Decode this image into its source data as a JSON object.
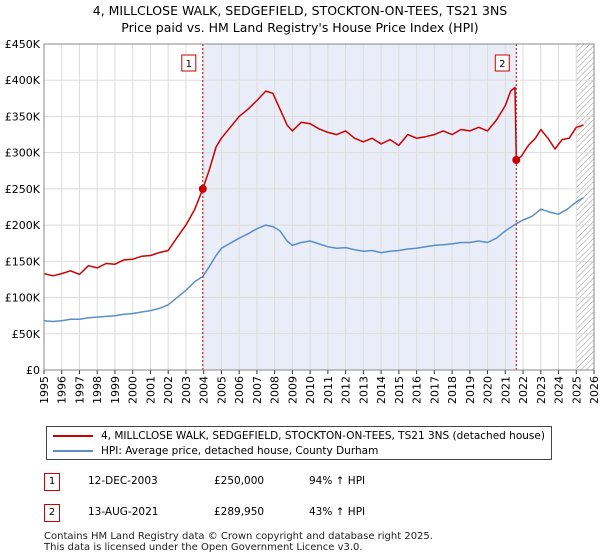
{
  "title": {
    "line1": "4, MILLCLOSE WALK, SEDGEFIELD, STOCKTON-ON-TEES, TS21 3NS",
    "line2": "Price paid vs. HM Land Registry's House Price Index (HPI)"
  },
  "colors": {
    "property": "#cc0000",
    "hpi": "#5b8ec9",
    "grid": "#dddddd",
    "plot_bg": "#ffffff",
    "highlight": "#e8edf7",
    "marker_line": "#cc0000"
  },
  "chart_data": {
    "type": "line",
    "xlim": [
      1995,
      2026
    ],
    "ylim": [
      0,
      450000
    ],
    "x_ticks": [
      "1995",
      "1996",
      "1997",
      "1998",
      "1999",
      "2000",
      "2001",
      "2002",
      "2003",
      "2004",
      "2005",
      "2006",
      "2007",
      "2008",
      "2009",
      "2010",
      "2011",
      "2012",
      "2013",
      "2014",
      "2015",
      "2016",
      "2017",
      "2018",
      "2019",
      "2020",
      "2021",
      "2022",
      "2023",
      "2024",
      "2025",
      "2026"
    ],
    "y_ticks": [
      {
        "value": 0,
        "label": "£0"
      },
      {
        "value": 50000,
        "label": "£50K"
      },
      {
        "value": 100000,
        "label": "£100K"
      },
      {
        "value": 150000,
        "label": "£150K"
      },
      {
        "value": 200000,
        "label": "£200K"
      },
      {
        "value": 250000,
        "label": "£250K"
      },
      {
        "value": 300000,
        "label": "£300K"
      },
      {
        "value": 350000,
        "label": "£350K"
      },
      {
        "value": 400000,
        "label": "£400K"
      },
      {
        "value": 450000,
        "label": "£450K"
      }
    ],
    "highlight_range": [
      2003.95,
      2021.62
    ],
    "future_hatch_from": 2025.0,
    "series": [
      {
        "name": "4, MILLCLOSE WALK, SEDGEFIELD, STOCKTON-ON-TEES, TS21 3NS (detached house)",
        "color": "#cc0000",
        "points": [
          [
            1995.0,
            133000
          ],
          [
            1995.5,
            130000
          ],
          [
            1996.0,
            133000
          ],
          [
            1996.5,
            137000
          ],
          [
            1997.0,
            132000
          ],
          [
            1997.5,
            144000
          ],
          [
            1998.0,
            141000
          ],
          [
            1998.5,
            147000
          ],
          [
            1999.0,
            146000
          ],
          [
            1999.5,
            152000
          ],
          [
            2000.0,
            153000
          ],
          [
            2000.5,
            157000
          ],
          [
            2001.0,
            158000
          ],
          [
            2001.5,
            162000
          ],
          [
            2002.0,
            165000
          ],
          [
            2002.5,
            183000
          ],
          [
            2003.0,
            200000
          ],
          [
            2003.5,
            222000
          ],
          [
            2003.95,
            250000
          ],
          [
            2004.3,
            275000
          ],
          [
            2004.7,
            308000
          ],
          [
            2005.0,
            320000
          ],
          [
            2005.5,
            335000
          ],
          [
            2006.0,
            350000
          ],
          [
            2006.5,
            360000
          ],
          [
            2007.0,
            372000
          ],
          [
            2007.5,
            385000
          ],
          [
            2007.9,
            382000
          ],
          [
            2008.3,
            360000
          ],
          [
            2008.7,
            338000
          ],
          [
            2009.0,
            330000
          ],
          [
            2009.5,
            342000
          ],
          [
            2010.0,
            340000
          ],
          [
            2010.5,
            333000
          ],
          [
            2011.0,
            328000
          ],
          [
            2011.5,
            325000
          ],
          [
            2012.0,
            330000
          ],
          [
            2012.5,
            320000
          ],
          [
            2013.0,
            315000
          ],
          [
            2013.5,
            320000
          ],
          [
            2014.0,
            312000
          ],
          [
            2014.5,
            318000
          ],
          [
            2015.0,
            310000
          ],
          [
            2015.5,
            325000
          ],
          [
            2016.0,
            320000
          ],
          [
            2016.5,
            322000
          ],
          [
            2017.0,
            325000
          ],
          [
            2017.5,
            330000
          ],
          [
            2018.0,
            325000
          ],
          [
            2018.5,
            332000
          ],
          [
            2019.0,
            330000
          ],
          [
            2019.5,
            335000
          ],
          [
            2020.0,
            330000
          ],
          [
            2020.5,
            345000
          ],
          [
            2021.0,
            365000
          ],
          [
            2021.3,
            385000
          ],
          [
            2021.55,
            390000
          ],
          [
            2021.62,
            289950
          ],
          [
            2021.9,
            295000
          ],
          [
            2022.3,
            310000
          ],
          [
            2022.7,
            320000
          ],
          [
            2023.0,
            332000
          ],
          [
            2023.4,
            320000
          ],
          [
            2023.8,
            305000
          ],
          [
            2024.2,
            318000
          ],
          [
            2024.6,
            320000
          ],
          [
            2025.0,
            335000
          ],
          [
            2025.4,
            338000
          ]
        ]
      },
      {
        "name": "HPI: Average price, detached house, County Durham",
        "color": "#5b8ec9",
        "points": [
          [
            1995.0,
            68000
          ],
          [
            1995.5,
            67000
          ],
          [
            1996.0,
            68000
          ],
          [
            1996.5,
            70000
          ],
          [
            1997.0,
            70000
          ],
          [
            1997.5,
            72000
          ],
          [
            1998.0,
            73000
          ],
          [
            1998.5,
            74000
          ],
          [
            1999.0,
            75000
          ],
          [
            1999.5,
            77000
          ],
          [
            2000.0,
            78000
          ],
          [
            2000.5,
            80000
          ],
          [
            2001.0,
            82000
          ],
          [
            2001.5,
            85000
          ],
          [
            2002.0,
            90000
          ],
          [
            2002.5,
            100000
          ],
          [
            2003.0,
            110000
          ],
          [
            2003.5,
            122000
          ],
          [
            2003.95,
            129000
          ],
          [
            2004.3,
            142000
          ],
          [
            2004.7,
            158000
          ],
          [
            2005.0,
            168000
          ],
          [
            2005.5,
            175000
          ],
          [
            2006.0,
            182000
          ],
          [
            2006.5,
            188000
          ],
          [
            2007.0,
            195000
          ],
          [
            2007.5,
            200000
          ],
          [
            2007.9,
            198000
          ],
          [
            2008.3,
            192000
          ],
          [
            2008.7,
            178000
          ],
          [
            2009.0,
            172000
          ],
          [
            2009.5,
            176000
          ],
          [
            2010.0,
            178000
          ],
          [
            2010.5,
            174000
          ],
          [
            2011.0,
            170000
          ],
          [
            2011.5,
            168000
          ],
          [
            2012.0,
            169000
          ],
          [
            2012.5,
            166000
          ],
          [
            2013.0,
            164000
          ],
          [
            2013.5,
            165000
          ],
          [
            2014.0,
            162000
          ],
          [
            2014.5,
            164000
          ],
          [
            2015.0,
            165000
          ],
          [
            2015.5,
            167000
          ],
          [
            2016.0,
            168000
          ],
          [
            2016.5,
            170000
          ],
          [
            2017.0,
            172000
          ],
          [
            2017.5,
            173000
          ],
          [
            2018.0,
            174000
          ],
          [
            2018.5,
            176000
          ],
          [
            2019.0,
            176000
          ],
          [
            2019.5,
            178000
          ],
          [
            2020.0,
            176000
          ],
          [
            2020.5,
            182000
          ],
          [
            2021.0,
            192000
          ],
          [
            2021.62,
            202000
          ],
          [
            2022.0,
            207000
          ],
          [
            2022.5,
            212000
          ],
          [
            2023.0,
            222000
          ],
          [
            2023.5,
            218000
          ],
          [
            2024.0,
            215000
          ],
          [
            2024.5,
            222000
          ],
          [
            2025.0,
            232000
          ],
          [
            2025.4,
            238000
          ]
        ]
      }
    ],
    "sales": [
      {
        "id": "1",
        "x": 2003.95,
        "y": 250000
      },
      {
        "id": "2",
        "x": 2021.62,
        "y": 289950
      }
    ]
  },
  "legend": {
    "property_label": "4, MILLCLOSE WALK, SEDGEFIELD, STOCKTON-ON-TEES, TS21 3NS (detached house)",
    "hpi_label": "HPI: Average price, detached house, County Durham"
  },
  "transactions": [
    {
      "num": "1",
      "date": "12-DEC-2003",
      "price": "£250,000",
      "hpi": "94% ↑ HPI"
    },
    {
      "num": "2",
      "date": "13-AUG-2021",
      "price": "£289,950",
      "hpi": "43% ↑ HPI"
    }
  ],
  "footer": {
    "line1": "Contains HM Land Registry data © Crown copyright and database right 2025.",
    "line2": "This data is licensed under the Open Government Licence v3.0."
  }
}
